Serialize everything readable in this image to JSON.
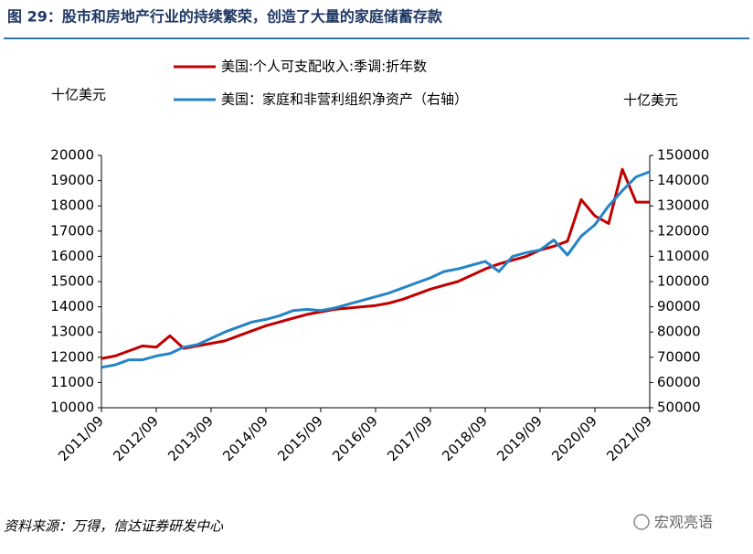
{
  "chart_data": {
    "type": "line",
    "title": "图 29：股市和房地产行业的持续繁荣，创造了大量的家庭储蓄存款",
    "y_label": "十亿美元",
    "y2_label": "十亿美元",
    "source": "资料来源：万得，信达证券研发中心",
    "watermark": "宏观亮语",
    "categories": [
      "2011/09",
      null,
      null,
      null,
      "2012/09",
      null,
      null,
      null,
      "2013/09",
      null,
      null,
      null,
      "2014/09",
      null,
      null,
      null,
      "2015/09",
      null,
      null,
      null,
      "2016/09",
      null,
      null,
      null,
      "2017/09",
      null,
      null,
      null,
      "2018/09",
      null,
      null,
      null,
      "2019/09",
      null,
      null,
      null,
      "2020/09",
      null,
      null,
      null,
      "2021/09"
    ],
    "series": [
      {
        "name": "美国:个人可支配收入:季调:折年数",
        "color": "#c00000",
        "axis": "y",
        "values": [
          11950,
          12050,
          12250,
          12450,
          12400,
          12850,
          12350,
          12450,
          12550,
          12650,
          12850,
          13050,
          13250,
          13400,
          13550,
          13700,
          13800,
          13900,
          13950,
          14000,
          14050,
          14150,
          14300,
          14500,
          14700,
          14850,
          15000,
          15250,
          15500,
          15700,
          15850,
          16000,
          16250,
          16400,
          16600,
          18250,
          17600,
          17300,
          19450,
          18150,
          18150
        ]
      },
      {
        "name": "美国：家庭和非营利组织净资产（右轴）",
        "color": "#2484c6",
        "axis": "y2",
        "values": [
          66000,
          67000,
          69000,
          69000,
          70500,
          71500,
          74000,
          75000,
          77500,
          80000,
          82000,
          84000,
          85000,
          86500,
          88500,
          89000,
          88500,
          89500,
          91000,
          92500,
          94000,
          95500,
          97500,
          99500,
          101500,
          104000,
          105000,
          106500,
          108000,
          104000,
          110000,
          111500,
          112500,
          116500,
          110500,
          118000,
          122500,
          130000,
          136000,
          141500,
          143500
        ]
      }
    ],
    "ylim": [
      10000,
      20000
    ],
    "yticks": [
      10000,
      11000,
      12000,
      13000,
      14000,
      15000,
      16000,
      17000,
      18000,
      19000,
      20000
    ],
    "y2lim": [
      50000,
      150000
    ],
    "y2ticks": [
      50000,
      60000,
      70000,
      80000,
      90000,
      100000,
      110000,
      120000,
      130000,
      140000,
      150000
    ],
    "grid": false
  }
}
